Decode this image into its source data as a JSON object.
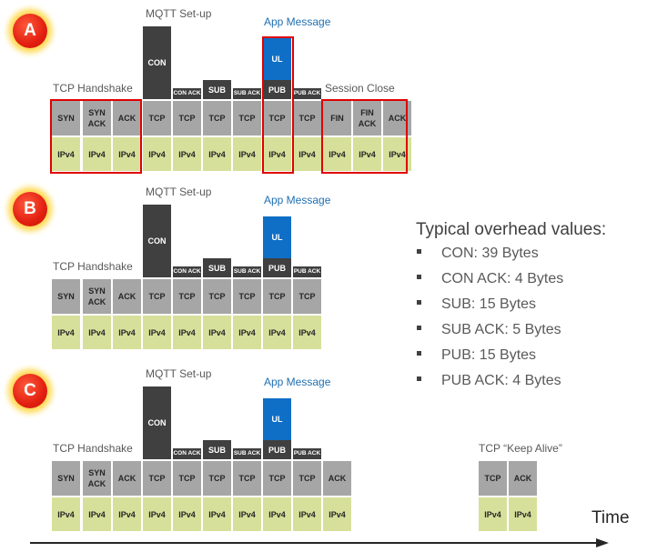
{
  "badges": [
    "A",
    "B",
    "C"
  ],
  "labels": {
    "mqtt_setup": "MQTT Set-up",
    "app_message": "App Message",
    "tcp_handshake": "TCP Handshake",
    "session_close": "Session Close",
    "keep_alive": "TCP “Keep Alive”"
  },
  "packets": {
    "ipv4": "IPv4",
    "syn": "SYN",
    "syn_ack": "SYN\nACK",
    "ack": "ACK",
    "tcp": "TCP",
    "con": "CON",
    "con_ack": "CON ACK",
    "sub": "SUB",
    "sub_ack": "SUB ACK",
    "ul": "UL",
    "pub": "PUB",
    "pub_ack": "PUB ACK",
    "fin": "FIN",
    "fin_ack": "FIN\nACK"
  },
  "overhead": {
    "title": "Typical overhead values:",
    "items": [
      "CON: 39 Bytes",
      "CON ACK: 4 Bytes",
      "SUB: 15 Bytes",
      "SUB ACK: 5 Bytes",
      "PUB: 15 Bytes",
      "PUB ACK: 4 Bytes"
    ]
  },
  "axis_label": "Time",
  "colors": {
    "tcp_layer": "#a6a6a6",
    "ip_layer": "#d7e09a",
    "mqtt_layer": "#404040",
    "app_layer": "#0f6fc6",
    "highlight": "#e00000"
  }
}
